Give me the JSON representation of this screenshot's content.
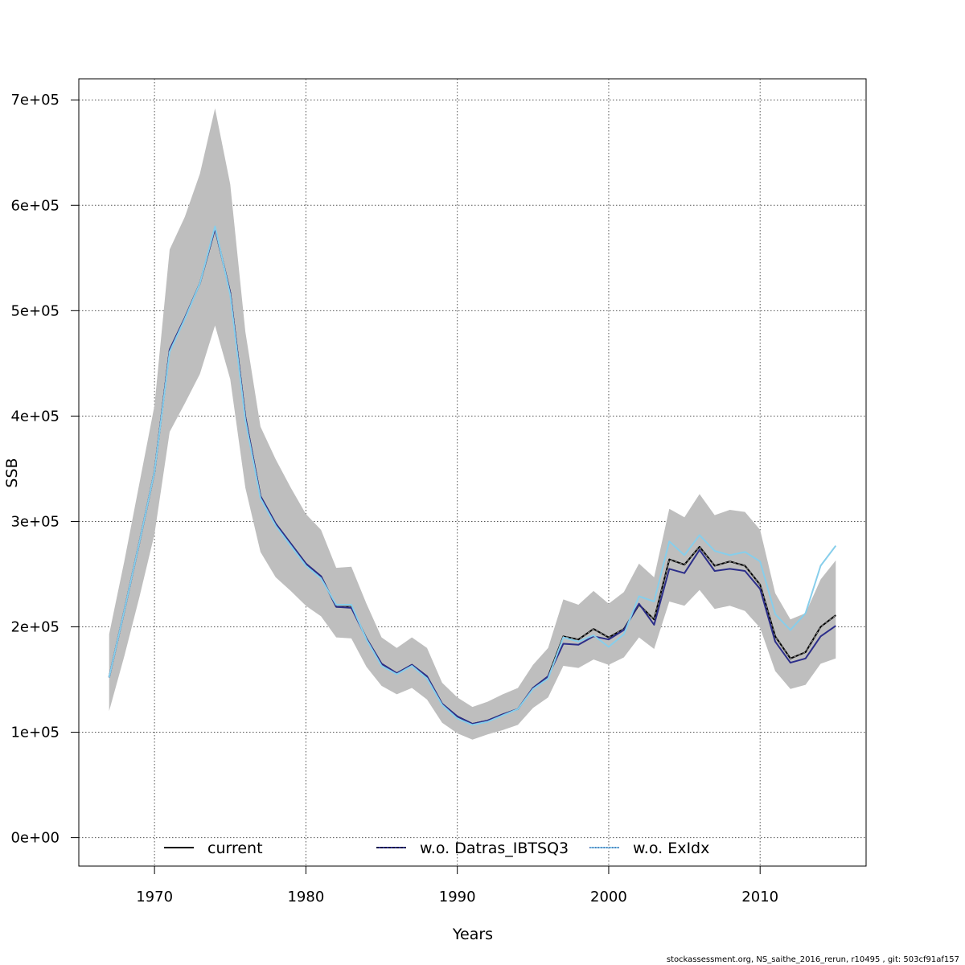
{
  "chart_data": {
    "type": "line",
    "title": "",
    "xlabel": "Years",
    "ylabel": "SSB",
    "xlim": [
      1965,
      2017
    ],
    "ylim": [
      -27000,
      720000
    ],
    "grid": true,
    "x_ticks": [
      1970,
      1980,
      1990,
      2000,
      2010
    ],
    "x_tick_labels": [
      "1970",
      "1980",
      "1990",
      "2000",
      "2010"
    ],
    "y_ticks": [
      0,
      100000,
      200000,
      300000,
      400000,
      500000,
      600000,
      700000
    ],
    "y_tick_labels": [
      "0e+00",
      "1e+05",
      "2e+05",
      "3e+05",
      "4e+05",
      "5e+05",
      "6e+05",
      "7e+05"
    ],
    "legend_position": "bottom",
    "confidence_band": {
      "color": "#bebebe",
      "x": [
        1967,
        1968,
        1969,
        1970,
        1971,
        1972,
        1973,
        1974,
        1975,
        1976,
        1977,
        1978,
        1979,
        1980,
        1981,
        1982,
        1983,
        1984,
        1985,
        1986,
        1987,
        1988,
        1989,
        1990,
        1991,
        1992,
        1993,
        1994,
        1995,
        1996,
        1997,
        1998,
        1999,
        2000,
        2001,
        2002,
        2003,
        2004,
        2005,
        2006,
        2007,
        2008,
        2009,
        2010,
        2011,
        2012,
        2013,
        2014,
        2015
      ],
      "lower": [
        120000,
        172000,
        228000,
        288000,
        385000,
        412000,
        440000,
        486000,
        435000,
        332000,
        271000,
        247000,
        234000,
        220000,
        210000,
        190000,
        189000,
        162000,
        144000,
        136000,
        142000,
        131000,
        109000,
        99000,
        93000,
        98000,
        102000,
        107000,
        123000,
        133000,
        163000,
        161000,
        169000,
        164000,
        171000,
        190000,
        179000,
        224000,
        220000,
        235000,
        217000,
        220000,
        215000,
        199000,
        158000,
        141000,
        145000,
        165000,
        170000
      ],
      "upper": [
        193000,
        262000,
        336000,
        410000,
        558000,
        589000,
        630000,
        692000,
        620000,
        480000,
        390000,
        359000,
        332000,
        307000,
        292000,
        256000,
        257000,
        222000,
        190000,
        180000,
        190000,
        180000,
        147000,
        133000,
        124000,
        129000,
        136000,
        142000,
        164000,
        180000,
        226000,
        221000,
        234000,
        222000,
        233000,
        260000,
        247000,
        312000,
        304000,
        326000,
        306000,
        311000,
        309000,
        292000,
        232000,
        207000,
        213000,
        245000,
        263000
      ]
    },
    "x": [
      1967,
      1968,
      1969,
      1970,
      1971,
      1972,
      1973,
      1974,
      1975,
      1976,
      1977,
      1978,
      1979,
      1980,
      1981,
      1982,
      1983,
      1984,
      1985,
      1986,
      1987,
      1988,
      1989,
      1990,
      1991,
      1992,
      1993,
      1994,
      1995,
      1996,
      1997,
      1998,
      1999,
      2000,
      2001,
      2002,
      2003,
      2004,
      2005,
      2006,
      2007,
      2008,
      2009,
      2010,
      2011,
      2012,
      2013,
      2014,
      2015
    ],
    "series": [
      {
        "name": "current",
        "color": "#000000",
        "style": "solid",
        "values": [
          152000,
          215000,
          280000,
          347000,
          463000,
          493000,
          526000,
          578000,
          517000,
          399000,
          324000,
          298000,
          279000,
          260000,
          248000,
          219000,
          219000,
          189000,
          165000,
          156000,
          164000,
          153000,
          127000,
          115000,
          108000,
          111000,
          117000,
          122000,
          142000,
          153000,
          191000,
          188000,
          198000,
          190000,
          198000,
          221000,
          207000,
          264000,
          259000,
          276000,
          258000,
          262000,
          258000,
          240000,
          191000,
          170000,
          176000,
          200000,
          211000
        ]
      },
      {
        "name": "w.o. Datras_IBTSQ3",
        "color": "#2c2e8a",
        "style": "solid",
        "values": [
          152000,
          215000,
          280000,
          347000,
          463000,
          493000,
          526000,
          578000,
          517000,
          399000,
          324000,
          298000,
          279000,
          260000,
          248000,
          219000,
          218000,
          189000,
          165000,
          156000,
          164000,
          153000,
          127000,
          115000,
          108000,
          111000,
          117000,
          122000,
          142000,
          153000,
          184000,
          183000,
          191000,
          188000,
          197000,
          222000,
          202000,
          255000,
          251000,
          273000,
          253000,
          255000,
          253000,
          236000,
          186000,
          166000,
          170000,
          191000,
          201000
        ]
      },
      {
        "name": "w.o. ExIdx",
        "color": "#87ceeb",
        "style": "solid",
        "values": [
          152000,
          215000,
          280000,
          347000,
          461000,
          492000,
          526000,
          580000,
          515000,
          396000,
          322000,
          296000,
          277000,
          258000,
          246000,
          221000,
          221000,
          188000,
          163000,
          155000,
          163000,
          151000,
          126000,
          113000,
          107000,
          110000,
          116000,
          122000,
          141000,
          151000,
          190000,
          186000,
          192000,
          181000,
          193000,
          229000,
          224000,
          281000,
          268000,
          287000,
          272000,
          268000,
          271000,
          262000,
          212000,
          197000,
          213000,
          258000,
          277000
        ]
      }
    ],
    "legend": [
      {
        "label": "current",
        "color": "#000000",
        "style": "solid"
      },
      {
        "label": "w.o. Datras_IBTSQ3",
        "color": "#2c2e8a",
        "style": "dashed-over-solid"
      },
      {
        "label": "w.o. ExIdx",
        "color": "#87ceeb",
        "style": "dotted-over-solid"
      }
    ]
  },
  "footer_text": "stockassessment.org, NS_saithe_2016_rerun, r10495 , git: 503cf91af157"
}
